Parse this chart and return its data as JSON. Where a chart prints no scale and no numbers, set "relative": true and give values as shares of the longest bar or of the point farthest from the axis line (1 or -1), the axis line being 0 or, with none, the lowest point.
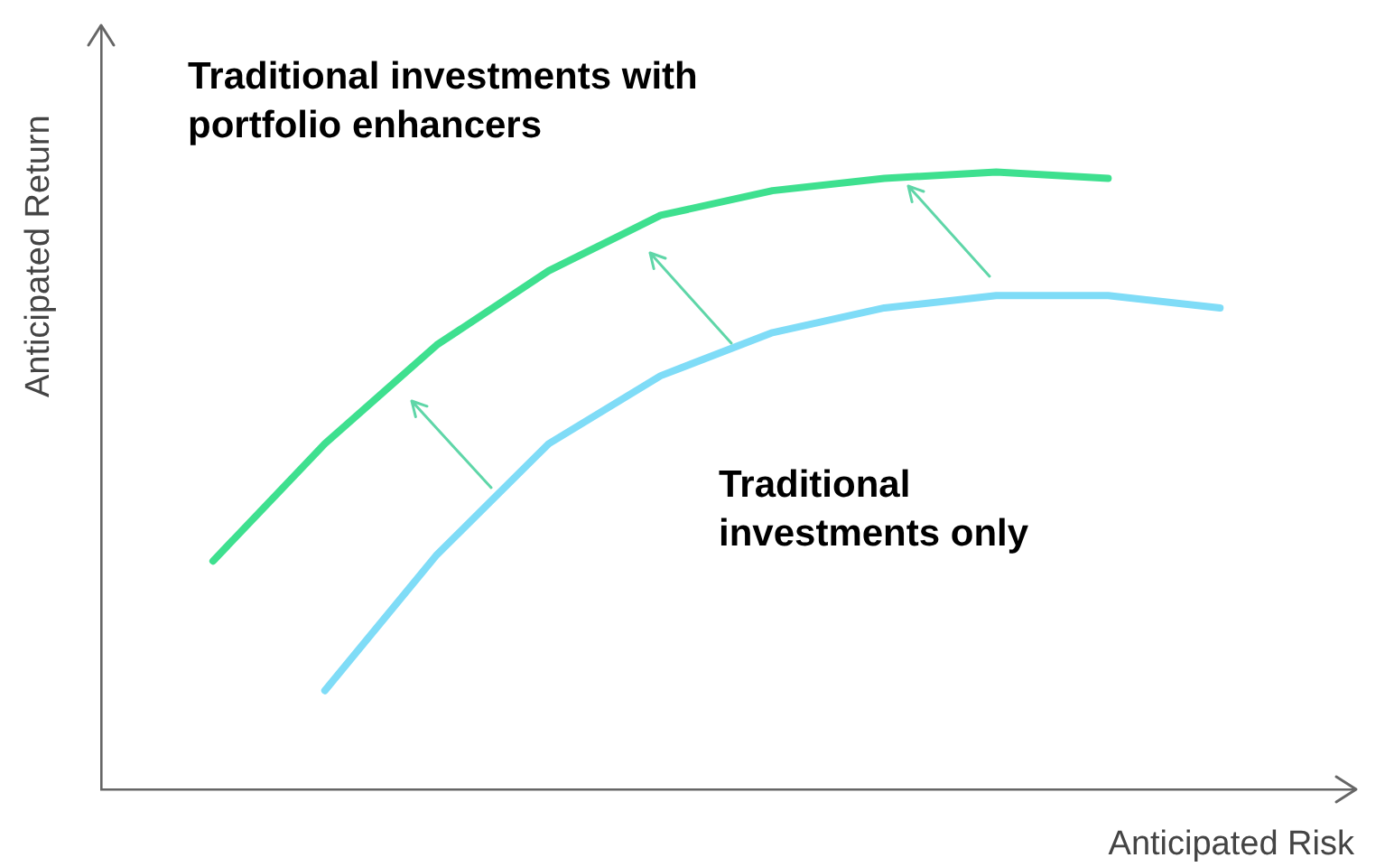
{
  "chart_data": {
    "type": "line",
    "relative": true,
    "xlabel": "Anticipated Risk",
    "ylabel": "Anticipated Return",
    "legend": false,
    "marker": "none",
    "line_style": "solid",
    "grid": false,
    "categories": [
      null,
      null,
      null,
      null,
      null,
      null,
      null,
      null,
      null,
      null
    ],
    "series": [
      {
        "name": "Traditional investments with portfolio enhancers",
        "color": "#3ee08f",
        "values": [
          0.37,
          0.56,
          0.72,
          0.84,
          0.93,
          0.97,
          0.99,
          1,
          0.99,
          null
        ]
      },
      {
        "name": "Traditional investments only",
        "color": "#7fdcf7",
        "values": [
          null,
          0.16,
          0.38,
          0.56,
          0.67,
          0.74,
          0.78,
          0.8,
          0.8,
          0.78
        ]
      }
    ]
  }
}
